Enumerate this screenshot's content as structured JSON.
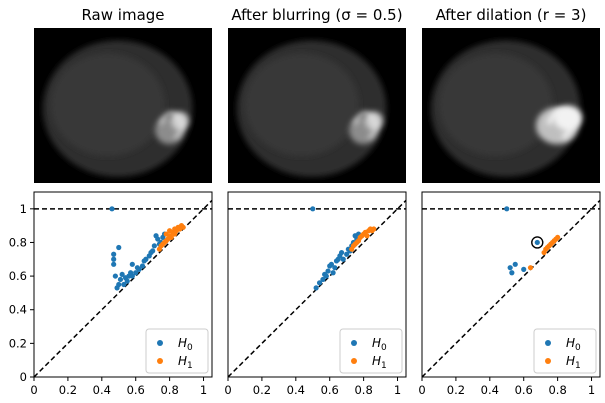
{
  "panels": [
    {
      "title": "Raw image",
      "blobs": [
        [
          0.76,
          0.66,
          0.08,
          0.09,
          0.55
        ],
        [
          0.82,
          0.6,
          0.05,
          0.06,
          0.8
        ]
      ],
      "scale": 1.0
    },
    {
      "title": "After blurring (σ = 0.5)",
      "blobs": [
        [
          0.76,
          0.66,
          0.08,
          0.09,
          0.55
        ],
        [
          0.82,
          0.6,
          0.05,
          0.06,
          0.8
        ]
      ],
      "scale": 1.0
    },
    {
      "title": "After dilation (r = 3)",
      "blobs": [
        [
          0.76,
          0.63,
          0.12,
          0.12,
          0.75
        ],
        [
          0.82,
          0.58,
          0.08,
          0.08,
          0.95
        ]
      ],
      "scale": 1.0
    }
  ],
  "chart_data": [
    {
      "type": "scatter",
      "xlim": [
        0,
        1.05
      ],
      "ylim": [
        0,
        1.1
      ],
      "xticks": [
        "0",
        "0.2",
        "0.4",
        "0.6",
        "0.8",
        "1"
      ],
      "yticks": [
        "0",
        "0.2",
        "0.4",
        "0.6",
        "0.8",
        "1"
      ],
      "series": [
        {
          "name": "H0",
          "color": "#1f77b4",
          "points": [
            [
              0.46,
              1.0
            ],
            [
              0.47,
              0.73
            ],
            [
              0.47,
              0.7
            ],
            [
              0.47,
              0.67
            ],
            [
              0.48,
              0.6
            ],
            [
              0.5,
              0.77
            ],
            [
              0.49,
              0.53
            ],
            [
              0.5,
              0.55
            ],
            [
              0.51,
              0.58
            ],
            [
              0.52,
              0.61
            ],
            [
              0.53,
              0.55
            ],
            [
              0.54,
              0.59
            ],
            [
              0.55,
              0.57
            ],
            [
              0.56,
              0.6
            ],
            [
              0.57,
              0.62
            ],
            [
              0.58,
              0.6
            ],
            [
              0.58,
              0.67
            ],
            [
              0.6,
              0.62
            ],
            [
              0.61,
              0.65
            ],
            [
              0.62,
              0.64
            ],
            [
              0.64,
              0.66
            ],
            [
              0.65,
              0.69
            ],
            [
              0.66,
              0.7
            ],
            [
              0.68,
              0.72
            ],
            [
              0.69,
              0.74
            ],
            [
              0.7,
              0.75
            ],
            [
              0.71,
              0.78
            ],
            [
              0.72,
              0.84
            ],
            [
              0.73,
              0.82
            ],
            [
              0.74,
              0.79
            ],
            [
              0.75,
              0.8
            ],
            [
              0.76,
              0.83
            ],
            [
              0.77,
              0.85
            ]
          ]
        },
        {
          "name": "H1",
          "color": "#ff7f0e",
          "points": [
            [
              0.74,
              0.76
            ],
            [
              0.75,
              0.78
            ],
            [
              0.76,
              0.79
            ],
            [
              0.77,
              0.8
            ],
            [
              0.78,
              0.81
            ],
            [
              0.78,
              0.85
            ],
            [
              0.79,
              0.82
            ],
            [
              0.8,
              0.84
            ],
            [
              0.8,
              0.87
            ],
            [
              0.81,
              0.83
            ],
            [
              0.82,
              0.86
            ],
            [
              0.83,
              0.88
            ],
            [
              0.83,
              0.85
            ],
            [
              0.84,
              0.87
            ],
            [
              0.85,
              0.89
            ],
            [
              0.86,
              0.88
            ],
            [
              0.87,
              0.9
            ],
            [
              0.88,
              0.89
            ]
          ]
        }
      ]
    },
    {
      "type": "scatter",
      "xlim": [
        0,
        1.05
      ],
      "ylim": [
        0,
        1.1
      ],
      "xticks": [
        "0",
        "0.2",
        "0.4",
        "0.6",
        "0.8",
        "1"
      ],
      "yticks": [
        "0",
        "0.2",
        "0.4",
        "0.6",
        "0.8",
        "1"
      ],
      "series": [
        {
          "name": "H0",
          "color": "#1f77b4",
          "points": [
            [
              0.5,
              1.0
            ],
            [
              0.52,
              0.53
            ],
            [
              0.54,
              0.56
            ],
            [
              0.56,
              0.58
            ],
            [
              0.57,
              0.61
            ],
            [
              0.58,
              0.6
            ],
            [
              0.59,
              0.63
            ],
            [
              0.6,
              0.66
            ],
            [
              0.61,
              0.67
            ],
            [
              0.62,
              0.62
            ],
            [
              0.63,
              0.65
            ],
            [
              0.64,
              0.69
            ],
            [
              0.65,
              0.7
            ],
            [
              0.66,
              0.72
            ],
            [
              0.67,
              0.74
            ],
            [
              0.68,
              0.7
            ],
            [
              0.7,
              0.73
            ],
            [
              0.71,
              0.76
            ],
            [
              0.72,
              0.75
            ],
            [
              0.73,
              0.78
            ],
            [
              0.74,
              0.8
            ],
            [
              0.75,
              0.84
            ],
            [
              0.76,
              0.82
            ],
            [
              0.77,
              0.85
            ]
          ]
        },
        {
          "name": "H1",
          "color": "#ff7f0e",
          "points": [
            [
              0.73,
              0.76
            ],
            [
              0.74,
              0.78
            ],
            [
              0.75,
              0.79
            ],
            [
              0.76,
              0.8
            ],
            [
              0.77,
              0.81
            ],
            [
              0.78,
              0.83
            ],
            [
              0.79,
              0.84
            ],
            [
              0.8,
              0.85
            ],
            [
              0.81,
              0.86
            ],
            [
              0.82,
              0.84
            ],
            [
              0.83,
              0.87
            ],
            [
              0.84,
              0.88
            ],
            [
              0.85,
              0.87
            ],
            [
              0.86,
              0.88
            ]
          ]
        }
      ]
    },
    {
      "type": "scatter",
      "xlim": [
        0,
        1.05
      ],
      "ylim": [
        0,
        1.1
      ],
      "xticks": [
        "0",
        "0.2",
        "0.4",
        "0.6",
        "0.8",
        "1"
      ],
      "yticks": [
        "0",
        "0.2",
        "0.4",
        "0.6",
        "0.8",
        "1"
      ],
      "series": [
        {
          "name": "H0",
          "color": "#1f77b4",
          "points": [
            [
              0.5,
              1.0
            ],
            [
              0.52,
              0.65
            ],
            [
              0.53,
              0.62
            ],
            [
              0.55,
              0.67
            ],
            [
              0.6,
              0.64
            ],
            [
              0.68,
              0.8
            ]
          ]
        },
        {
          "name": "H1",
          "color": "#ff7f0e",
          "points": [
            [
              0.64,
              0.65
            ],
            [
              0.72,
              0.74
            ],
            [
              0.73,
              0.76
            ],
            [
              0.74,
              0.77
            ],
            [
              0.75,
              0.78
            ],
            [
              0.76,
              0.79
            ],
            [
              0.77,
              0.8
            ],
            [
              0.78,
              0.81
            ],
            [
              0.79,
              0.82
            ],
            [
              0.8,
              0.83
            ]
          ]
        }
      ],
      "highlight": [
        0.68,
        0.8
      ]
    }
  ],
  "legend_placement": "lower-right",
  "reference_lines": {
    "diagonal": "y = x",
    "horizontal": "y = 1"
  }
}
